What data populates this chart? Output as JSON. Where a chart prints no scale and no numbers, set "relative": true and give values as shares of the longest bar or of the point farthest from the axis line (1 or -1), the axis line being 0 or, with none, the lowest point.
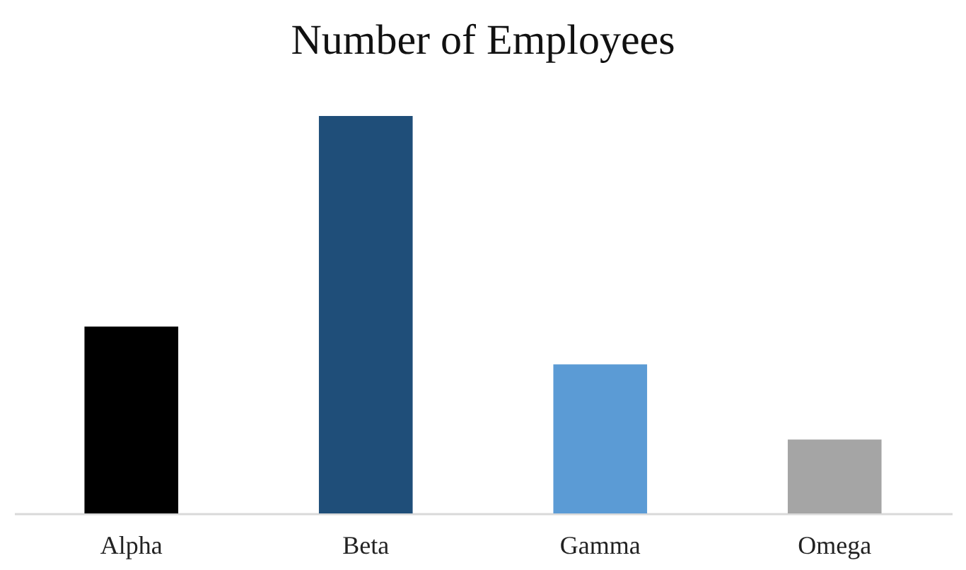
{
  "chart_data": {
    "type": "bar",
    "title": "Number of Employees",
    "relative": true,
    "categories": [
      "Alpha",
      "Beta",
      "Gamma",
      "Omega"
    ],
    "values": [
      0.47,
      1,
      0.375,
      0.186
    ],
    "colors": [
      "#000000",
      "#1f4e79",
      "#5b9bd5",
      "#a5a5a5"
    ],
    "grid": false
  }
}
